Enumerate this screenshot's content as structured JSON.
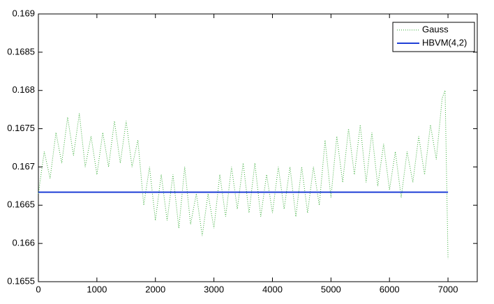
{
  "chart_data": {
    "type": "line",
    "xlim": [
      0,
      7500
    ],
    "xticks": [
      0,
      1000,
      2000,
      3000,
      4000,
      5000,
      6000,
      7000
    ],
    "ylim": [
      0.1655,
      0.169
    ],
    "yticks": [
      0.1655,
      0.166,
      0.1665,
      0.167,
      0.1675,
      0.168,
      0.1685,
      0.169
    ],
    "legend": "upper right",
    "series": [
      {
        "name": "Gauss",
        "color": "#33aa33",
        "style": "dotted",
        "x": [
          0,
          100,
          200,
          300,
          400,
          500,
          600,
          700,
          800,
          900,
          1000,
          1100,
          1200,
          1300,
          1400,
          1500,
          1600,
          1700,
          1800,
          1900,
          2000,
          2100,
          2200,
          2300,
          2400,
          2500,
          2600,
          2700,
          2800,
          2900,
          3000,
          3100,
          3200,
          3300,
          3400,
          3500,
          3600,
          3700,
          3800,
          3900,
          4000,
          4100,
          4200,
          4300,
          4400,
          4500,
          4600,
          4700,
          4800,
          4900,
          5000,
          5100,
          5200,
          5300,
          5400,
          5500,
          5600,
          5700,
          5800,
          5900,
          6000,
          6100,
          6200,
          6300,
          6400,
          6500,
          6600,
          6700,
          6800,
          6900,
          6950,
          7000
        ],
        "values": [
          0.16665,
          0.1672,
          0.16685,
          0.16745,
          0.16705,
          0.16765,
          0.16715,
          0.1677,
          0.167,
          0.1674,
          0.1669,
          0.16745,
          0.167,
          0.1676,
          0.16705,
          0.1676,
          0.167,
          0.16735,
          0.1665,
          0.167,
          0.1663,
          0.1669,
          0.1663,
          0.1669,
          0.1662,
          0.167,
          0.16625,
          0.16665,
          0.1661,
          0.16665,
          0.1662,
          0.1669,
          0.16635,
          0.167,
          0.16645,
          0.16705,
          0.1664,
          0.16705,
          0.16635,
          0.1669,
          0.1664,
          0.167,
          0.16645,
          0.167,
          0.16635,
          0.167,
          0.1664,
          0.167,
          0.1665,
          0.16735,
          0.1666,
          0.1674,
          0.1668,
          0.1675,
          0.1669,
          0.16755,
          0.1668,
          0.16745,
          0.16675,
          0.1673,
          0.1667,
          0.1672,
          0.1666,
          0.1672,
          0.1668,
          0.1674,
          0.1669,
          0.16755,
          0.1671,
          0.1679,
          0.168,
          0.1658
        ]
      },
      {
        "name": "HBVM(4,2)",
        "color": "#1f3fd6",
        "style": "solid",
        "x": [
          0,
          7000
        ],
        "values": [
          0.16667,
          0.16667
        ]
      }
    ]
  }
}
